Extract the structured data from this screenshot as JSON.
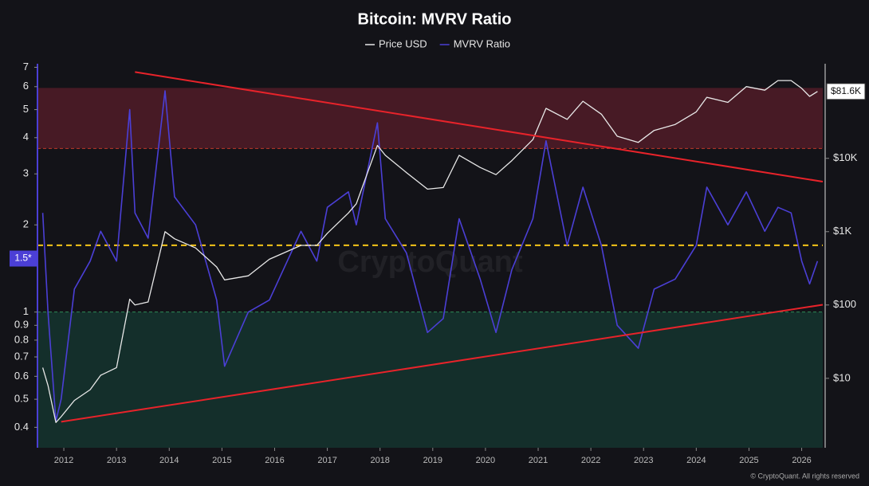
{
  "chart_data": {
    "type": "line",
    "title": "Bitcoin: MVRV Ratio",
    "watermark": "CryptoQuant",
    "credit": "© CryptoQuant. All rights reserved",
    "x": [
      2011.6,
      2011.7,
      2011.85,
      2011.95,
      2012.2,
      2012.5,
      2012.7,
      2013.0,
      2013.25,
      2013.35,
      2013.6,
      2013.92,
      2014.1,
      2014.5,
      2014.9,
      2015.05,
      2015.5,
      2015.9,
      2016.5,
      2016.8,
      2017.0,
      2017.4,
      2017.55,
      2017.95,
      2018.1,
      2018.5,
      2018.9,
      2019.2,
      2019.5,
      2019.9,
      2020.2,
      2020.5,
      2020.9,
      2021.15,
      2021.55,
      2021.85,
      2022.2,
      2022.5,
      2022.9,
      2023.2,
      2023.6,
      2024.0,
      2024.2,
      2024.6,
      2024.95,
      2025.3,
      2025.55,
      2025.8,
      2026.0,
      2026.15,
      2026.3
    ],
    "series": [
      {
        "name": "MVRV Ratio",
        "color": "#4b3fd6",
        "values": [
          2.2,
          1.0,
          0.42,
          0.5,
          1.2,
          1.5,
          1.9,
          1.5,
          5.0,
          2.2,
          1.8,
          5.8,
          2.5,
          2.0,
          1.1,
          0.65,
          1.0,
          1.1,
          1.9,
          1.5,
          2.3,
          2.6,
          2.0,
          4.5,
          2.1,
          1.6,
          0.85,
          0.95,
          2.1,
          1.3,
          0.85,
          1.4,
          2.1,
          3.9,
          1.7,
          2.7,
          1.7,
          0.9,
          0.75,
          1.2,
          1.3,
          1.7,
          2.7,
          2.0,
          2.6,
          1.9,
          2.3,
          2.2,
          1.5,
          1.25,
          1.5
        ]
      },
      {
        "name": "Price USD",
        "color": "#e8e8e8",
        "axis": "y2",
        "values": [
          14,
          8,
          2.5,
          3,
          5,
          7,
          11,
          14,
          120,
          100,
          110,
          1000,
          800,
          600,
          330,
          220,
          250,
          420,
          650,
          650,
          950,
          1800,
          2400,
          15000,
          11000,
          6400,
          3800,
          4000,
          11000,
          7500,
          6000,
          9300,
          18000,
          48000,
          34000,
          60000,
          40000,
          20000,
          16500,
          24000,
          29000,
          43000,
          68000,
          58000,
          95000,
          85000,
          115000,
          115000,
          90000,
          70000,
          81600
        ]
      }
    ],
    "legend_order": [
      1,
      0
    ],
    "xlim": [
      2011.5,
      2026.4
    ],
    "xticks": [
      2012,
      2013,
      2014,
      2015,
      2016,
      2017,
      2018,
      2019,
      2020,
      2021,
      2022,
      2023,
      2024,
      2025,
      2026
    ],
    "log_scale": true,
    "ylim": [
      0.34,
      7.2
    ],
    "yticks": [
      0.4,
      0.5,
      0.6,
      0.7,
      0.8,
      0.9,
      1,
      2,
      3,
      4,
      5,
      6,
      7
    ],
    "y2lim": [
      1.13,
      195000
    ],
    "y2ticks": [
      {
        "value": 10,
        "label": "$10"
      },
      {
        "value": 100,
        "label": "$100"
      },
      {
        "value": 1000,
        "label": "$1K"
      },
      {
        "value": 10000,
        "label": "$10K"
      }
    ],
    "zones": [
      {
        "from": 3.67,
        "to": 5.94,
        "color": "#5a1e2a"
      },
      {
        "to": 1,
        "color": "#163a32"
      }
    ],
    "levels": [
      {
        "value": 3.67,
        "color": "#c0392b"
      },
      {
        "value": 1,
        "color": "#2e8b57"
      },
      {
        "value": 1.7,
        "color": "#f5c518"
      }
    ],
    "trend_lines": [
      {
        "x": [
          2013.35,
          2026.4
        ],
        "values": [
          6.74,
          2.82
        ],
        "color": "#e8232a"
      },
      {
        "x": [
          2011.95,
          2026.4
        ],
        "values": [
          0.418,
          1.06
        ],
        "color": "#e8232a"
      }
    ],
    "annotations": [
      {
        "text": "1.5*",
        "value": 1.53,
        "axis": "y"
      },
      {
        "text": "$81.6K",
        "value": 81600,
        "axis": "y2"
      }
    ]
  }
}
